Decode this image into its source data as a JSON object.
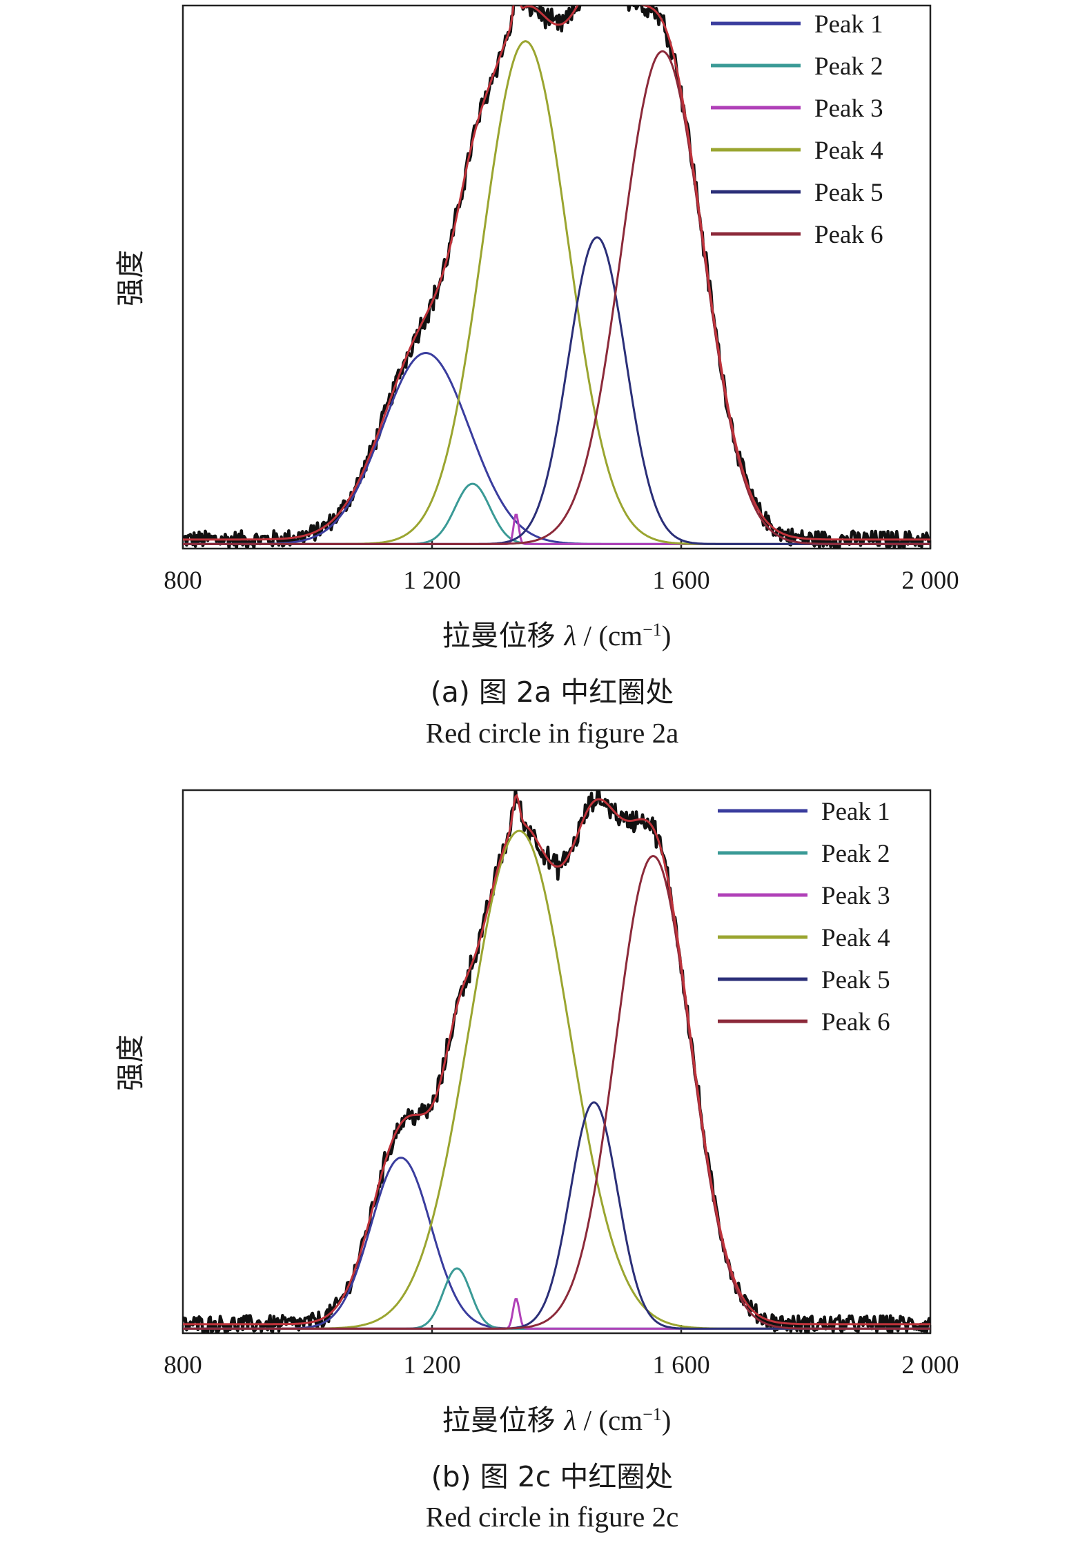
{
  "chart_data": [
    {
      "type": "line",
      "caption_cn": "(a) 图 2a 中红圈处",
      "caption_en": "Red circle in figure 2a",
      "xlabel_prefix": "拉曼位移 ",
      "xlabel_symbol": "λ",
      "xlabel_unit": " / (cm",
      "xlabel_sup": "−1",
      "xlabel_close": ")",
      "ylabel": "强度",
      "xlim": [
        800,
        2000
      ],
      "ylim": [
        0,
        1.08
      ],
      "xticks": [
        800,
        1200,
        1600,
        2000
      ],
      "xtick_labels": [
        "800",
        "1 200",
        "1 600",
        "2 000"
      ],
      "grid": false,
      "legend_position": "top-right",
      "baseline": 0.018,
      "peaks": [
        {
          "name": "Peak 1",
          "color": "#3a3d9e",
          "center": 1190,
          "height": 0.38,
          "width": 70
        },
        {
          "name": "Peak 2",
          "color": "#3a9a96",
          "center": 1265,
          "height": 0.12,
          "width": 28
        },
        {
          "name": "Peak 3",
          "color": "#b040b8",
          "center": 1335,
          "height": 0.06,
          "width": 4
        },
        {
          "name": "Peak 4",
          "color": "#9aa530",
          "center": 1350,
          "height": 1.0,
          "width": 68
        },
        {
          "name": "Peak 5",
          "color": "#2b2f78",
          "center": 1465,
          "height": 0.61,
          "width": 46
        },
        {
          "name": "Peak 6",
          "color": "#8c2a3a",
          "center": 1570,
          "height": 0.98,
          "width": 65
        }
      ]
    },
    {
      "type": "line",
      "caption_cn": "(b) 图 2c 中红圈处",
      "caption_en": "Red circle in figure 2c",
      "xlabel_prefix": "拉曼位移 ",
      "xlabel_symbol": "λ",
      "xlabel_unit": " / (cm",
      "xlabel_sup": "−1",
      "xlabel_close": ")",
      "ylabel": "强度",
      "xlim": [
        800,
        2000
      ],
      "ylim": [
        0,
        1.08
      ],
      "xticks": [
        800,
        1200,
        1600,
        2000
      ],
      "xtick_labels": [
        "800",
        "1 200",
        "1 600",
        "2 000"
      ],
      "grid": false,
      "legend_position": "top-right",
      "baseline": 0.018,
      "peaks": [
        {
          "name": "Peak 1",
          "color": "#3a3d9e",
          "center": 1150,
          "height": 0.34,
          "width": 48
        },
        {
          "name": "Peak 2",
          "color": "#3a9a96",
          "center": 1240,
          "height": 0.12,
          "width": 22
        },
        {
          "name": "Peak 3",
          "color": "#b040b8",
          "center": 1335,
          "height": 0.06,
          "width": 5
        },
        {
          "name": "Peak 4",
          "color": "#9aa530",
          "center": 1340,
          "height": 0.99,
          "width": 80
        },
        {
          "name": "Peak 5",
          "color": "#2b2f78",
          "center": 1460,
          "height": 0.45,
          "width": 38
        },
        {
          "name": "Peak 6",
          "color": "#8c2a3a",
          "center": 1555,
          "height": 0.94,
          "width": 60
        }
      ]
    }
  ]
}
